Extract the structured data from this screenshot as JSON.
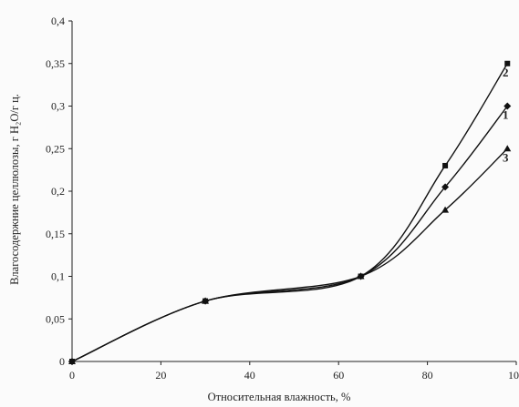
{
  "chart_data": {
    "type": "line",
    "title": "",
    "xlabel": "Относительная влажность, %",
    "ylabel": "Влагосодержние целлюлозы, г H₂O/г ц.",
    "xlim": [
      0,
      100
    ],
    "ylim": [
      0,
      0.4
    ],
    "grid": false,
    "legend": "none",
    "x_ticks": [
      0,
      20,
      40,
      60,
      80,
      100
    ],
    "x_tick_labels": [
      "0",
      "20",
      "40",
      "60",
      "80",
      "100"
    ],
    "y_ticks": [
      0,
      0.05,
      0.1,
      0.15,
      0.2,
      0.25,
      0.3,
      0.35,
      0.4
    ],
    "y_tick_labels": [
      "0",
      "0,05",
      "0,1",
      "0,15",
      "0,2",
      "0,25",
      "0,3",
      "0,35",
      "0,4"
    ],
    "series": [
      {
        "label": "2",
        "marker": "square",
        "x": [
          0,
          30,
          65,
          84,
          98
        ],
        "y": [
          0,
          0.071,
          0.1,
          0.23,
          0.35
        ]
      },
      {
        "label": "1",
        "marker": "diamond",
        "x": [
          0,
          30,
          65,
          84,
          98
        ],
        "y": [
          0,
          0.071,
          0.1,
          0.205,
          0.3
        ]
      },
      {
        "label": "3",
        "marker": "triangle",
        "x": [
          0,
          30,
          65,
          84,
          98
        ],
        "y": [
          0,
          0.071,
          0.1,
          0.178,
          0.25
        ]
      }
    ],
    "colors": {
      "line": "#111111",
      "axis": "#222222",
      "background": "#fbfbfb"
    }
  }
}
